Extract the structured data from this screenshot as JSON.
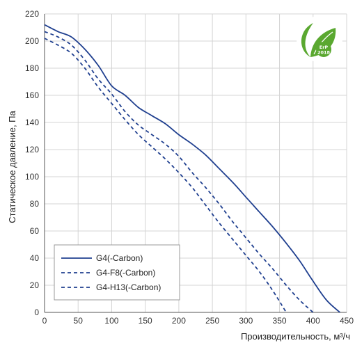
{
  "chart_data": {
    "type": "line",
    "title": "",
    "xlabel": "Производительность, м³/ч",
    "ylabel": "Статическое давление, Па",
    "xlim": [
      0,
      450
    ],
    "ylim": [
      0,
      220
    ],
    "xticks": [
      0,
      50,
      100,
      150,
      200,
      250,
      300,
      350,
      400,
      450
    ],
    "yticks": [
      0,
      20,
      40,
      60,
      80,
      100,
      120,
      140,
      160,
      180,
      200,
      220
    ],
    "grid": true,
    "legend_position": "bottom-left",
    "series": [
      {
        "name": "G4(-Carbon)",
        "style": "solid",
        "color": "#1f3f8f",
        "x": [
          0,
          20,
          40,
          60,
          80,
          100,
          120,
          140,
          160,
          180,
          200,
          220,
          240,
          260,
          280,
          300,
          320,
          340,
          360,
          380,
          400,
          420,
          440
        ],
        "y": [
          212,
          207,
          203,
          194,
          182,
          167,
          160,
          151,
          145,
          139,
          131,
          124,
          116,
          106,
          96,
          85,
          74,
          63,
          51,
          38,
          23,
          9,
          0
        ]
      },
      {
        "name": "G4-F8(-Carbon)",
        "style": "dashed",
        "color": "#1f3f8f",
        "x": [
          0,
          20,
          40,
          60,
          80,
          100,
          120,
          140,
          160,
          180,
          200,
          220,
          240,
          260,
          280,
          300,
          320,
          340,
          360,
          380,
          400
        ],
        "y": [
          207,
          203,
          197,
          186,
          172,
          161,
          148,
          138,
          131,
          124,
          115,
          103,
          92,
          80,
          67,
          55,
          43,
          32,
          20,
          9,
          0
        ]
      },
      {
        "name": "G4-H13(-Carbon)",
        "style": "dashed",
        "color": "#1f3f8f",
        "x": [
          0,
          20,
          40,
          60,
          80,
          100,
          120,
          140,
          160,
          180,
          200,
          220,
          240,
          260,
          280,
          300,
          320,
          340,
          360
        ],
        "y": [
          202,
          197,
          191,
          180,
          166,
          154,
          142,
          131,
          122,
          113,
          103,
          92,
          79,
          66,
          54,
          42,
          30,
          16,
          0
        ]
      }
    ]
  },
  "badge": {
    "line1": "ErP",
    "line2": "2018",
    "icon": "eco-leaf-icon",
    "color": "#5aa830"
  }
}
